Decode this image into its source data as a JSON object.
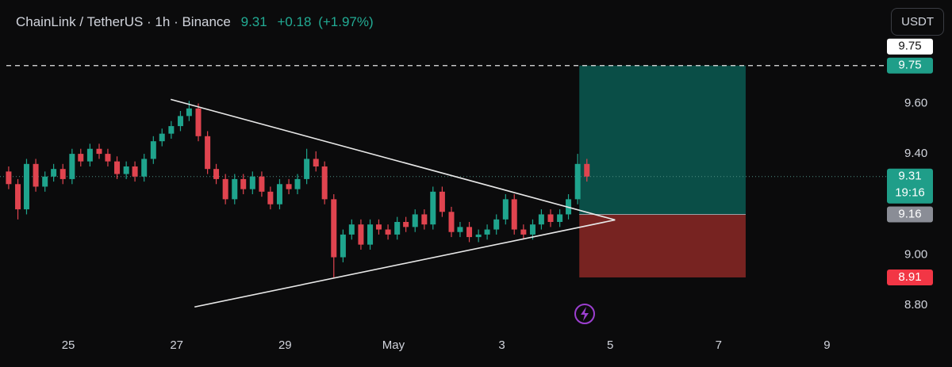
{
  "chart_data": {
    "type": "candlestick",
    "title": "ChainLink / TetherUS · 1h · Binance",
    "last": 9.31,
    "change": "+0.18",
    "change_pct": "(+1.97%)",
    "currency": "USDT",
    "up_color": "#1fa48d",
    "down_color": "#e0444f",
    "x": [
      -1.1,
      -0.93,
      -0.77,
      -0.6,
      -0.43,
      -0.27,
      -0.1,
      0.07,
      0.23,
      0.4,
      0.57,
      0.73,
      0.9,
      1.07,
      1.23,
      1.4,
      1.57,
      1.73,
      1.9,
      2.07,
      2.23,
      2.4,
      2.57,
      2.73,
      2.9,
      3.07,
      3.23,
      3.4,
      3.57,
      3.73,
      3.9,
      4.07,
      4.23,
      4.4,
      4.57,
      4.73,
      4.9,
      5.07,
      5.23,
      5.4,
      5.57,
      5.73,
      5.9,
      6.07,
      6.23,
      6.4,
      6.57,
      6.73,
      6.9,
      7.07,
      7.23,
      7.4,
      7.57,
      7.73,
      7.9,
      8.07,
      8.23,
      8.4,
      8.57,
      8.73,
      8.9,
      9.07,
      9.23,
      9.4,
      9.57
    ],
    "open": [
      9.33,
      9.28,
      9.18,
      9.36,
      9.27,
      9.31,
      9.34,
      9.3,
      9.4,
      9.37,
      9.42,
      9.4,
      9.37,
      9.32,
      9.35,
      9.31,
      9.38,
      9.45,
      9.48,
      9.51,
      9.55,
      9.58,
      9.47,
      9.34,
      9.3,
      9.22,
      9.3,
      9.26,
      9.31,
      9.25,
      9.2,
      9.28,
      9.26,
      9.3,
      9.38,
      9.35,
      9.22,
      8.99,
      9.08,
      9.12,
      9.04,
      9.12,
      9.1,
      9.08,
      9.13,
      9.11,
      9.16,
      9.12,
      9.25,
      9.17,
      9.09,
      9.11,
      9.07,
      9.08,
      9.1,
      9.14,
      9.22,
      9.1,
      9.08,
      9.12,
      9.16,
      9.13,
      9.16,
      9.22,
      9.36
    ],
    "high": [
      9.35,
      9.3,
      9.38,
      9.38,
      9.33,
      9.36,
      9.36,
      9.42,
      9.42,
      9.44,
      9.44,
      9.42,
      9.39,
      9.37,
      9.37,
      9.4,
      9.47,
      9.5,
      9.53,
      9.57,
      9.61,
      9.6,
      9.49,
      9.36,
      9.32,
      9.32,
      9.32,
      9.33,
      9.33,
      9.27,
      9.3,
      9.3,
      9.32,
      9.42,
      9.41,
      9.37,
      9.24,
      9.1,
      9.14,
      9.14,
      9.14,
      9.14,
      9.12,
      9.15,
      9.15,
      9.18,
      9.18,
      9.27,
      9.27,
      9.19,
      9.13,
      9.13,
      9.1,
      9.12,
      9.16,
      9.24,
      9.24,
      9.12,
      9.14,
      9.18,
      9.18,
      9.18,
      9.24,
      9.4,
      9.38
    ],
    "low": [
      9.26,
      9.14,
      9.16,
      9.25,
      9.25,
      9.29,
      9.28,
      9.28,
      9.35,
      9.35,
      9.38,
      9.35,
      9.3,
      9.3,
      9.29,
      9.29,
      9.36,
      9.43,
      9.46,
      9.49,
      9.53,
      9.45,
      9.32,
      9.28,
      9.2,
      9.2,
      9.24,
      9.24,
      9.23,
      9.18,
      9.18,
      9.24,
      9.24,
      9.28,
      9.33,
      9.2,
      8.91,
      8.97,
      9.06,
      9.02,
      9.02,
      9.08,
      9.06,
      9.06,
      9.09,
      9.09,
      9.1,
      9.1,
      9.15,
      9.07,
      9.07,
      9.05,
      9.05,
      9.06,
      9.08,
      9.12,
      9.08,
      9.06,
      9.06,
      9.1,
      9.11,
      9.11,
      9.14,
      9.2,
      9.29
    ],
    "close": [
      9.28,
      9.18,
      9.36,
      9.27,
      9.31,
      9.34,
      9.3,
      9.4,
      9.37,
      9.42,
      9.4,
      9.37,
      9.32,
      9.35,
      9.31,
      9.38,
      9.45,
      9.48,
      9.51,
      9.55,
      9.58,
      9.47,
      9.34,
      9.3,
      9.22,
      9.3,
      9.26,
      9.31,
      9.25,
      9.2,
      9.28,
      9.26,
      9.3,
      9.38,
      9.35,
      9.22,
      8.99,
      9.08,
      9.12,
      9.04,
      9.12,
      9.1,
      9.08,
      9.13,
      9.11,
      9.16,
      9.12,
      9.25,
      9.17,
      9.09,
      9.11,
      9.07,
      9.08,
      9.1,
      9.14,
      9.22,
      9.1,
      9.08,
      9.12,
      9.16,
      9.13,
      9.16,
      9.22,
      9.36,
      9.31
    ],
    "xlim": [
      -1.26,
      14.99
    ],
    "xticks": [
      {
        "value": 0,
        "label": "25"
      },
      {
        "value": 2,
        "label": "27"
      },
      {
        "value": 4,
        "label": "29"
      },
      {
        "value": 6,
        "label": "May"
      },
      {
        "value": 8,
        "label": "3"
      },
      {
        "value": 10,
        "label": "5"
      },
      {
        "value": 12,
        "label": "7"
      },
      {
        "value": 14,
        "label": "9"
      }
    ],
    "ylim": [
      8.69,
      10.01
    ],
    "yticks": [
      {
        "value": 8.8,
        "label": "8.80"
      },
      {
        "value": 9,
        "label": "9.00"
      },
      {
        "value": 9.4,
        "label": "9.40"
      },
      {
        "value": 9.6,
        "label": "9.60"
      }
    ],
    "trendlines": [
      {
        "x": [
          1.89,
          10.09
        ],
        "y": [
          9.616,
          9.138
        ]
      },
      {
        "x": [
          2.33,
          10.09
        ],
        "y": [
          8.793,
          9.138
        ]
      }
    ],
    "position": {
      "x": [
        9.43,
        12.5
      ],
      "target": 9.75,
      "entry": 9.16,
      "stop": 8.91
    },
    "price_labels": [
      {
        "value": 9.75,
        "color": "#ffffff"
      },
      {
        "value": 9.75,
        "color": "#1f9e89"
      },
      {
        "value": 9.31,
        "color": "#1f9e89",
        "countdown": "19:16"
      },
      {
        "value": 9.16,
        "color": "#8a8d96"
      },
      {
        "value": 8.91,
        "color": "#f23645"
      }
    ]
  }
}
